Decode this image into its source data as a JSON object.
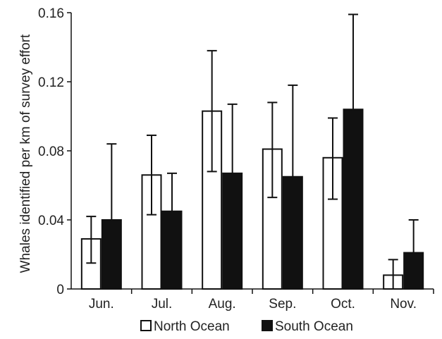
{
  "chart_data": {
    "type": "bar",
    "title": "",
    "xlabel": "",
    "ylabel": "Whales identified per km of survey effort",
    "ylim": [
      0,
      0.16
    ],
    "yticks": [
      "0",
      "0.04",
      "0.08",
      "0.12",
      "0.16"
    ],
    "ytick_values": [
      0,
      0.04,
      0.08,
      0.12,
      0.16
    ],
    "categories": [
      "Jun.",
      "Jul.",
      "Aug.",
      "Sep.",
      "Oct.",
      "Nov."
    ],
    "series": [
      {
        "name": "North Ocean",
        "color": "#ffffff",
        "stroke": "#111111",
        "values": [
          0.029,
          0.066,
          0.103,
          0.081,
          0.076,
          0.008
        ],
        "err_low": [
          0.015,
          0.043,
          0.068,
          0.053,
          0.052,
          0.0
        ],
        "err_high": [
          0.042,
          0.089,
          0.138,
          0.108,
          0.099,
          0.017
        ]
      },
      {
        "name": "South Ocean",
        "color": "#111111",
        "stroke": "#111111",
        "values": [
          0.04,
          0.045,
          0.067,
          0.065,
          0.104,
          0.021
        ],
        "err_low": [
          0.04,
          0.045,
          0.067,
          0.065,
          0.104,
          0.021
        ],
        "err_high": [
          0.084,
          0.067,
          0.107,
          0.118,
          0.159,
          0.04
        ]
      }
    ],
    "grid": false,
    "legend_position": "bottom"
  }
}
